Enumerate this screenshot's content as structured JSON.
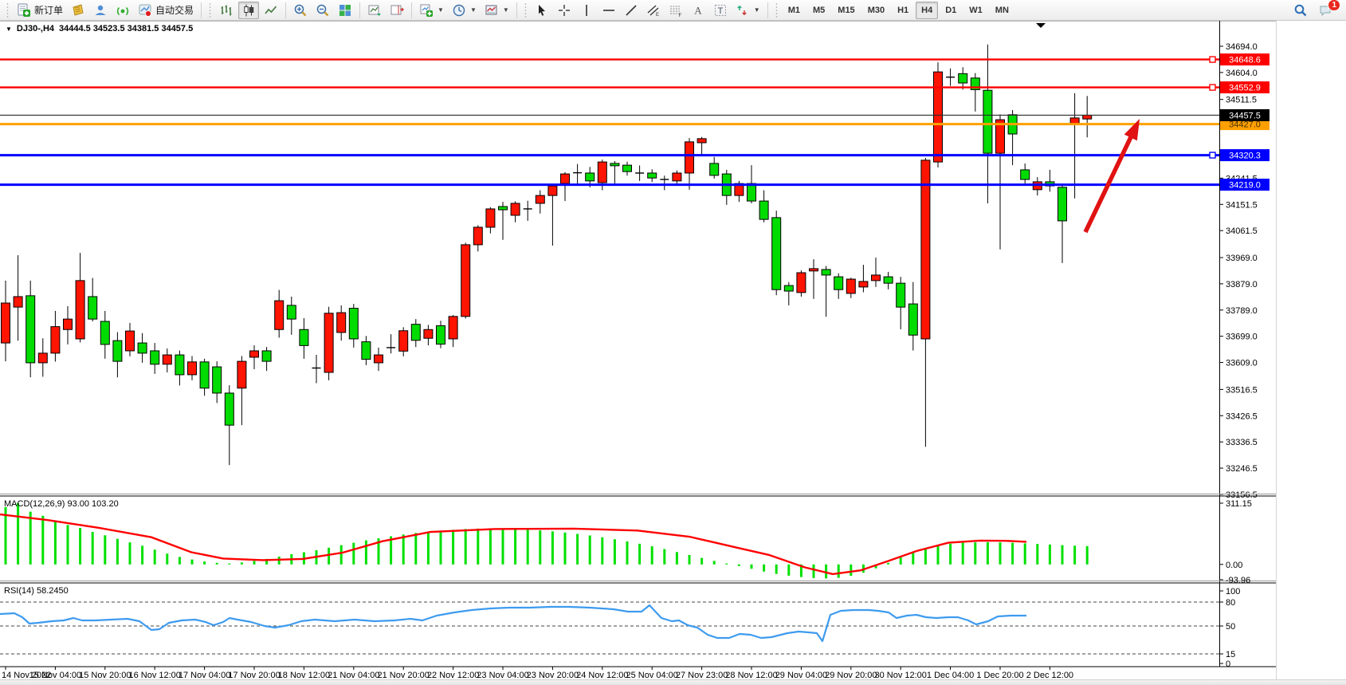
{
  "toolbar": {
    "new_order_label": "新订单",
    "autotrading_label": "自动交易",
    "timeframes": [
      "M1",
      "M5",
      "M15",
      "M30",
      "H1",
      "H4",
      "D1",
      "W1",
      "MN"
    ],
    "active_timeframe": "H4",
    "notification_count": "1",
    "icon_names": [
      "new-order-icon",
      "metaeditor-icon",
      "community-icon",
      "signals-icon",
      "autotrading-icon",
      "bar-chart-icon",
      "candlestick-icon",
      "line-chart-icon",
      "zoom-in-icon",
      "zoom-out-icon",
      "tile-windows-icon",
      "auto-scroll-icon",
      "chart-shift-icon",
      "new-chart-icon",
      "profiles-icon",
      "templates-icon",
      "cursor-icon",
      "crosshair-icon",
      "vertical-line-icon",
      "horizontal-line-icon",
      "trendline-icon",
      "channel-icon",
      "fibonacci-icon",
      "text-icon",
      "text-label-icon",
      "arrows-icon",
      "search-icon",
      "chat-icon"
    ]
  },
  "chart": {
    "symbol": "DJ30-,H4",
    "ohlc_line": "34444.5 34523.5 34381.5 34457.5",
    "macd_label": "MACD(12,26,9) 93.00 103.20",
    "rsi_label": "RSI(14) 58.2450"
  },
  "chart_data": {
    "type": "candlestick",
    "title": "DJ30-,H4",
    "legend_position": "none",
    "grid": false,
    "price_axis_ticks": [
      "34694.0",
      "34604.0",
      "34511.5",
      "34241.5",
      "34151.5",
      "34061.5",
      "33969.0",
      "33879.0",
      "33789.0",
      "33699.0",
      "33609.0",
      "33516.5",
      "33426.5",
      "33336.5",
      "33246.5",
      "33156.5"
    ],
    "price_axis_range": [
      33156.5,
      34711.0
    ],
    "macd_axis_ticks": [
      "311.15",
      "0.00",
      "-93.96"
    ],
    "rsi_axis_ticks": [
      "100",
      "80",
      "50",
      "15",
      "0"
    ],
    "rsi_levels": [
      80,
      50,
      15
    ],
    "time_labels": [
      "14 Nov 2022",
      "15 Nov 04:00",
      "15 Nov 20:00",
      "16 Nov 12:00",
      "17 Nov 04:00",
      "17 Nov 20:00",
      "18 Nov 12:00",
      "21 Nov 04:00",
      "21 Nov 20:00",
      "22 Nov 12:00",
      "23 Nov 04:00",
      "23 Nov 20:00",
      "24 Nov 12:00",
      "25 Nov 04:00",
      "27 Nov 23:00",
      "28 Nov 12:00",
      "29 Nov 04:00",
      "29 Nov 20:00",
      "30 Nov 12:00",
      "1 Dec 04:00",
      "1 Dec 20:00",
      "2 Dec 12:00"
    ],
    "colors": {
      "bull": "#fe1400",
      "bear": "#00dc00",
      "wick": "#000000",
      "macd_hist": "#00e000",
      "macd_signal": "#fe0000",
      "rsi_line": "#3e9bef",
      "line_red": "#fe0000",
      "line_orange": "#ffa000",
      "line_blue": "#0000ff",
      "current": "#000000",
      "arrow": "#e01212"
    },
    "candles": [
      [
        33676,
        33890,
        33613,
        33813
      ],
      [
        33799,
        33977,
        33684,
        33835
      ],
      [
        33838,
        33890,
        33558,
        33608
      ],
      [
        33608,
        33692,
        33560,
        33641
      ],
      [
        33641,
        33786,
        33612,
        33732
      ],
      [
        33722,
        33802,
        33671,
        33758
      ],
      [
        33690,
        33985,
        33678,
        33890
      ],
      [
        33835,
        33899,
        33750,
        33758
      ],
      [
        33750,
        33786,
        33622,
        33671
      ],
      [
        33684,
        33713,
        33558,
        33613
      ],
      [
        33649,
        33745,
        33630,
        33717
      ],
      [
        33676,
        33710,
        33608,
        33641
      ],
      [
        33649,
        33676,
        33570,
        33603
      ],
      [
        33603,
        33657,
        33575,
        33635
      ],
      [
        33635,
        33650,
        33530,
        33567
      ],
      [
        33567,
        33631,
        33548,
        33611
      ],
      [
        33611,
        33622,
        33495,
        33521
      ],
      [
        33594,
        33613,
        33470,
        33504
      ],
      [
        33504,
        33531,
        33257,
        33394
      ],
      [
        33521,
        33631,
        33394,
        33613
      ],
      [
        33627,
        33668,
        33586,
        33649
      ],
      [
        33649,
        33662,
        33580,
        33613
      ],
      [
        33722,
        33858,
        33694,
        33821
      ],
      [
        33805,
        33835,
        33704,
        33758
      ],
      [
        33722,
        33761,
        33622,
        33667
      ],
      [
        33590,
        33635,
        33538,
        33590
      ],
      [
        33575,
        33800,
        33548,
        33778
      ],
      [
        33712,
        33805,
        33684,
        33780
      ],
      [
        33795,
        33810,
        33660,
        33690
      ],
      [
        33680,
        33700,
        33600,
        33620
      ],
      [
        33608,
        33660,
        33580,
        33635
      ],
      [
        33660,
        33706,
        33640,
        33662
      ],
      [
        33648,
        33730,
        33630,
        33718
      ],
      [
        33740,
        33758,
        33662,
        33685
      ],
      [
        33692,
        33738,
        33668,
        33722
      ],
      [
        33735,
        33752,
        33658,
        33672
      ],
      [
        33690,
        33772,
        33662,
        33767
      ],
      [
        33767,
        34020,
        33760,
        34013
      ],
      [
        34013,
        34080,
        33990,
        34073
      ],
      [
        34073,
        34142,
        34052,
        34136
      ],
      [
        34144,
        34160,
        34030,
        34133
      ],
      [
        34114,
        34162,
        34090,
        34155
      ],
      [
        34136,
        34164,
        34095,
        34136
      ],
      [
        34155,
        34200,
        34120,
        34182
      ],
      [
        34182,
        34222,
        34010,
        34215
      ],
      [
        34223,
        34262,
        34163,
        34256
      ],
      [
        34260,
        34290,
        34215,
        34262
      ],
      [
        34259,
        34280,
        34210,
        34232
      ],
      [
        34226,
        34305,
        34200,
        34297
      ],
      [
        34292,
        34300,
        34223,
        34284
      ],
      [
        34286,
        34298,
        34250,
        34264
      ],
      [
        34259,
        34285,
        34232,
        34259
      ],
      [
        34259,
        34272,
        34228,
        34242
      ],
      [
        34237,
        34250,
        34200,
        34237
      ],
      [
        34232,
        34268,
        34215,
        34259
      ],
      [
        34259,
        34379,
        34202,
        34366
      ],
      [
        34363,
        34383,
        34319,
        34377
      ],
      [
        34292,
        34314,
        34240,
        34251
      ],
      [
        34256,
        34270,
        34150,
        34182
      ],
      [
        34182,
        34232,
        34160,
        34223
      ],
      [
        34223,
        34286,
        34155,
        34163
      ],
      [
        34163,
        34200,
        34090,
        34100
      ],
      [
        34106,
        34130,
        33840,
        33859
      ],
      [
        33873,
        33885,
        33805,
        33854
      ],
      [
        33849,
        33925,
        33835,
        33917
      ],
      [
        33923,
        33963,
        33827,
        33931
      ],
      [
        33928,
        33940,
        33766,
        33909
      ],
      [
        33903,
        33915,
        33827,
        33859
      ],
      [
        33846,
        33900,
        33830,
        33895
      ],
      [
        33868,
        33944,
        33850,
        33887
      ],
      [
        33890,
        33969,
        33868,
        33909
      ],
      [
        33903,
        33920,
        33860,
        33881
      ],
      [
        33881,
        33903,
        33723,
        33799
      ],
      [
        33810,
        33885,
        33650,
        33703
      ],
      [
        33690,
        34311,
        33320,
        34303
      ],
      [
        34297,
        34639,
        34278,
        34606
      ],
      [
        34588,
        34618,
        34558,
        34588
      ],
      [
        34600,
        34622,
        34545,
        34568
      ],
      [
        34585,
        34602,
        34470,
        34545
      ],
      [
        34543,
        34700,
        34155,
        34327
      ],
      [
        34327,
        34460,
        33997,
        34442
      ],
      [
        34459,
        34475,
        34286,
        34393
      ],
      [
        34270,
        34292,
        34223,
        34237
      ],
      [
        34202,
        34245,
        34182,
        34229
      ],
      [
        34229,
        34270,
        34195,
        34215
      ],
      [
        34210,
        34218,
        33950,
        34095
      ],
      [
        34429,
        34533,
        34172,
        34448
      ],
      [
        34444.5,
        34523.5,
        34381.5,
        34457.5
      ]
    ],
    "hlines": [
      {
        "price": 34648.6,
        "color": "#fe0000",
        "width": 2.4,
        "badge": "34648.6",
        "badge_bg": "#fe0000",
        "badge_fg": "#ffffff",
        "handle": true
      },
      {
        "price": 34552.9,
        "color": "#fe0000",
        "width": 2.4,
        "badge": "34552.9",
        "badge_bg": "#fe0000",
        "badge_fg": "#ffffff",
        "handle": true
      },
      {
        "price": 34427.0,
        "color": "#ffa000",
        "width": 3,
        "badge": "34427.0",
        "badge_bg": "#ffa000",
        "badge_fg": "#4a3000",
        "handle": false
      },
      {
        "price": 34320.3,
        "color": "#0000ff",
        "width": 3,
        "badge": "34320.3",
        "badge_bg": "#0000ff",
        "badge_fg": "#ffffff",
        "handle": true
      },
      {
        "price": 34219.0,
        "color": "#0000ff",
        "width": 3,
        "badge": "34219.0",
        "badge_bg": "#0000ff",
        "badge_fg": "#ffffff",
        "handle": false
      }
    ],
    "current_price": {
      "value": 34457.5,
      "badge": "34457.5",
      "badge_bg": "#000000",
      "badge_fg": "#ffffff"
    },
    "macd": {
      "histogram": [
        291,
        311,
        268,
        247,
        222,
        200,
        185,
        165,
        148,
        130,
        112,
        95,
        75,
        55,
        38,
        25,
        15,
        8,
        5,
        10,
        18,
        28,
        40,
        52,
        62,
        72,
        85,
        98,
        110,
        122,
        133,
        143,
        152,
        160,
        167,
        172,
        176,
        180,
        182,
        183,
        182,
        180,
        177,
        173,
        168,
        162,
        155,
        147,
        138,
        128,
        117,
        105,
        92,
        78,
        63,
        48,
        33,
        18,
        5,
        -8,
        -22,
        -36,
        -48,
        -57,
        -64,
        -69,
        -71,
        -68,
        -58,
        -42,
        -20,
        8,
        35,
        60,
        80,
        95,
        105,
        110,
        112,
        113,
        112,
        110,
        107,
        104,
        101,
        98,
        95,
        93
      ],
      "signal_points": [
        [
          0,
          254
        ],
        [
          60,
          225
        ],
        [
          125,
          185
        ],
        [
          190,
          138
        ],
        [
          240,
          62
        ],
        [
          280,
          30
        ],
        [
          330,
          22
        ],
        [
          380,
          28
        ],
        [
          430,
          60
        ],
        [
          480,
          118
        ],
        [
          540,
          165
        ],
        [
          620,
          180
        ],
        [
          720,
          182
        ],
        [
          800,
          172
        ],
        [
          865,
          141
        ],
        [
          925,
          85
        ],
        [
          965,
          48
        ],
        [
          1010,
          -15
        ],
        [
          1045,
          -49
        ],
        [
          1080,
          -30
        ],
        [
          1115,
          18
        ],
        [
          1150,
          68
        ],
        [
          1190,
          110
        ],
        [
          1230,
          121
        ],
        [
          1262,
          120
        ],
        [
          1288,
          115
        ]
      ]
    },
    "rsi": {
      "points": [
        [
          0,
          65
        ],
        [
          18,
          66
        ],
        [
          28,
          61
        ],
        [
          37,
          53
        ],
        [
          48,
          54
        ],
        [
          65,
          56
        ],
        [
          80,
          57
        ],
        [
          92,
          60
        ],
        [
          103,
          57
        ],
        [
          120,
          57
        ],
        [
          140,
          58
        ],
        [
          160,
          59
        ],
        [
          175,
          56
        ],
        [
          190,
          45
        ],
        [
          200,
          46
        ],
        [
          212,
          54
        ],
        [
          228,
          57
        ],
        [
          245,
          58
        ],
        [
          258,
          55
        ],
        [
          268,
          51
        ],
        [
          280,
          55
        ],
        [
          288,
          60
        ],
        [
          298,
          58
        ],
        [
          315,
          55
        ],
        [
          332,
          50
        ],
        [
          345,
          48
        ],
        [
          362,
          51
        ],
        [
          378,
          56
        ],
        [
          395,
          58
        ],
        [
          420,
          56
        ],
        [
          445,
          58
        ],
        [
          470,
          56
        ],
        [
          495,
          57
        ],
        [
          515,
          59
        ],
        [
          530,
          57
        ],
        [
          548,
          63
        ],
        [
          570,
          67
        ],
        [
          592,
          70
        ],
        [
          615,
          72
        ],
        [
          640,
          73
        ],
        [
          665,
          73
        ],
        [
          690,
          74
        ],
        [
          715,
          74
        ],
        [
          740,
          73
        ],
        [
          770,
          71
        ],
        [
          788,
          68
        ],
        [
          805,
          68
        ],
        [
          815,
          76
        ],
        [
          830,
          60
        ],
        [
          843,
          56
        ],
        [
          852,
          57
        ],
        [
          863,
          51
        ],
        [
          875,
          48
        ],
        [
          888,
          39
        ],
        [
          900,
          35
        ],
        [
          915,
          35
        ],
        [
          928,
          40
        ],
        [
          942,
          39
        ],
        [
          955,
          35
        ],
        [
          968,
          36
        ],
        [
          988,
          41
        ],
        [
          1002,
          43
        ],
        [
          1015,
          42
        ],
        [
          1025,
          41
        ],
        [
          1032,
          31
        ],
        [
          1042,
          64
        ],
        [
          1055,
          69
        ],
        [
          1070,
          70
        ],
        [
          1090,
          70
        ],
        [
          1102,
          69
        ],
        [
          1115,
          67
        ],
        [
          1125,
          60
        ],
        [
          1138,
          63
        ],
        [
          1150,
          64
        ],
        [
          1162,
          61
        ],
        [
          1175,
          60
        ],
        [
          1190,
          61
        ],
        [
          1202,
          61
        ],
        [
          1215,
          57
        ],
        [
          1225,
          52
        ],
        [
          1240,
          56
        ],
        [
          1252,
          62
        ],
        [
          1268,
          63
        ],
        [
          1288,
          63
        ]
      ]
    },
    "annotation_arrow": {
      "from": [
        1362,
        291
      ],
      "to": [
        1430,
        149
      ],
      "color": "#e01212"
    }
  }
}
